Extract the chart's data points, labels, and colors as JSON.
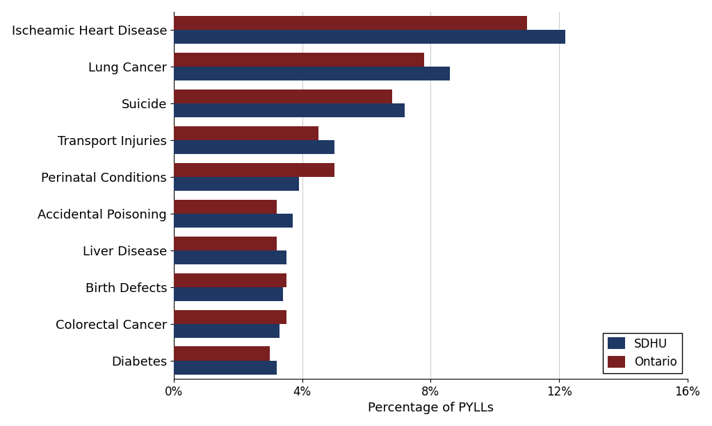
{
  "categories": [
    "Ischeamic Heart Disease",
    "Lung Cancer",
    "Suicide",
    "Transport Injuries",
    "Perinatal Conditions",
    "Accidental Poisoning",
    "Liver Disease",
    "Birth Defects",
    "Colorectal Cancer",
    "Diabetes"
  ],
  "sdhu_values": [
    12.2,
    8.6,
    7.2,
    5.0,
    3.9,
    3.7,
    3.5,
    3.4,
    3.3,
    3.2
  ],
  "ontario_values": [
    11.0,
    7.8,
    6.8,
    4.5,
    5.0,
    3.2,
    3.2,
    3.5,
    3.5,
    3.0
  ],
  "sdhu_color": "#1F3864",
  "ontario_color": "#7B2020",
  "xlabel": "Percentage of PYLLs",
  "xlim": [
    0,
    16
  ],
  "xticks": [
    0,
    4,
    8,
    12,
    16
  ],
  "xtick_labels": [
    "0%",
    "4%",
    "8%",
    "12%",
    "16%"
  ],
  "legend_labels": [
    "SDHU",
    "Ontario"
  ],
  "bar_height": 0.38,
  "background_color": "#ffffff",
  "grid_color": "#cccccc",
  "font_size_labels": 13,
  "font_size_ticks": 12,
  "font_size_xlabel": 13,
  "font_size_legend": 12
}
